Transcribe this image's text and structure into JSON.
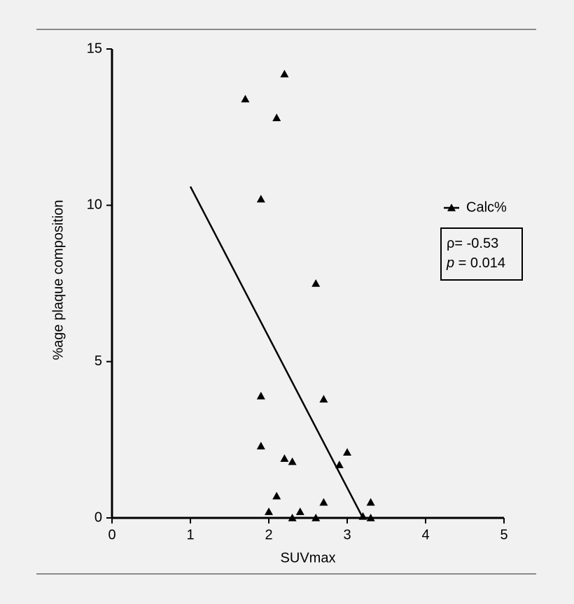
{
  "chart_data": {
    "type": "scatter",
    "x_label": "SUVmax",
    "y_label": "%age plaque composition",
    "xlim": [
      0,
      5
    ],
    "ylim": [
      0,
      15
    ],
    "xticks": [
      0,
      1,
      2,
      3,
      4,
      5
    ],
    "yticks": [
      0,
      5,
      10,
      15
    ],
    "series": [
      {
        "name": "Calc%",
        "color": "#000000",
        "x": [
          1.7,
          2.2,
          2.1,
          1.9,
          2.6,
          1.9,
          2.7,
          1.9,
          2.2,
          2.3,
          2.9,
          3.0,
          2.1,
          2.7,
          3.3,
          2.0,
          2.4,
          2.3,
          2.6,
          3.2,
          3.3
        ],
        "values": [
          13.4,
          14.2,
          12.8,
          10.2,
          7.5,
          3.9,
          3.8,
          2.3,
          1.9,
          1.8,
          1.7,
          2.1,
          0.7,
          0.5,
          0.5,
          0.2,
          0.2,
          0,
          0,
          0.05,
          0
        ]
      }
    ],
    "trend": {
      "x": [
        1.0,
        3.2
      ],
      "values": [
        10.6,
        0
      ]
    },
    "legend": "right",
    "annotation": [
      {
        "text": "ρ= -0.53"
      },
      {
        "italic": "p",
        "text": " = 0.014"
      }
    ]
  }
}
